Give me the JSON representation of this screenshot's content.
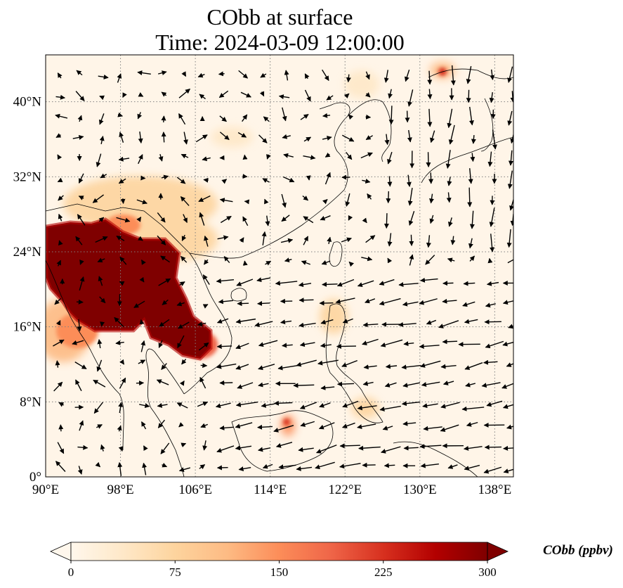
{
  "header": {
    "title_line1": "CObb at surface",
    "title_line2": "Time: 2024-03-09 12:00:00"
  },
  "map": {
    "lon_range": [
      90,
      140
    ],
    "lat_range": [
      0,
      45
    ],
    "lon_ticks": [
      {
        "value": 90,
        "label": "90°E"
      },
      {
        "value": 98,
        "label": "98°E"
      },
      {
        "value": 106,
        "label": "106°E"
      },
      {
        "value": 114,
        "label": "114°E"
      },
      {
        "value": 122,
        "label": "122°E"
      },
      {
        "value": 130,
        "label": "130°E"
      },
      {
        "value": 138,
        "label": "138°E"
      }
    ],
    "lat_ticks": [
      {
        "value": 0,
        "label": "0°"
      },
      {
        "value": 8,
        "label": "8°N"
      },
      {
        "value": 16,
        "label": "16°N"
      },
      {
        "value": 24,
        "label": "24°N"
      },
      {
        "value": 32,
        "label": "32°N"
      },
      {
        "value": 40,
        "label": "40°N"
      }
    ],
    "gridlines": true,
    "colormap": [
      "#fff7ec",
      "#fee8c8",
      "#fdd49e",
      "#fdbb84",
      "#fc8d59",
      "#ef6548",
      "#d7301f",
      "#b30000",
      "#7f0000"
    ]
  },
  "colorbar": {
    "label": "CObb (ppbv)",
    "min": 0,
    "max": 300,
    "extend": "both",
    "ticks": [
      {
        "value": 0,
        "label": "0"
      },
      {
        "value": 75,
        "label": "75"
      },
      {
        "value": 150,
        "label": "150"
      },
      {
        "value": 225,
        "label": "225"
      },
      {
        "value": 300,
        "label": "300"
      }
    ]
  }
}
